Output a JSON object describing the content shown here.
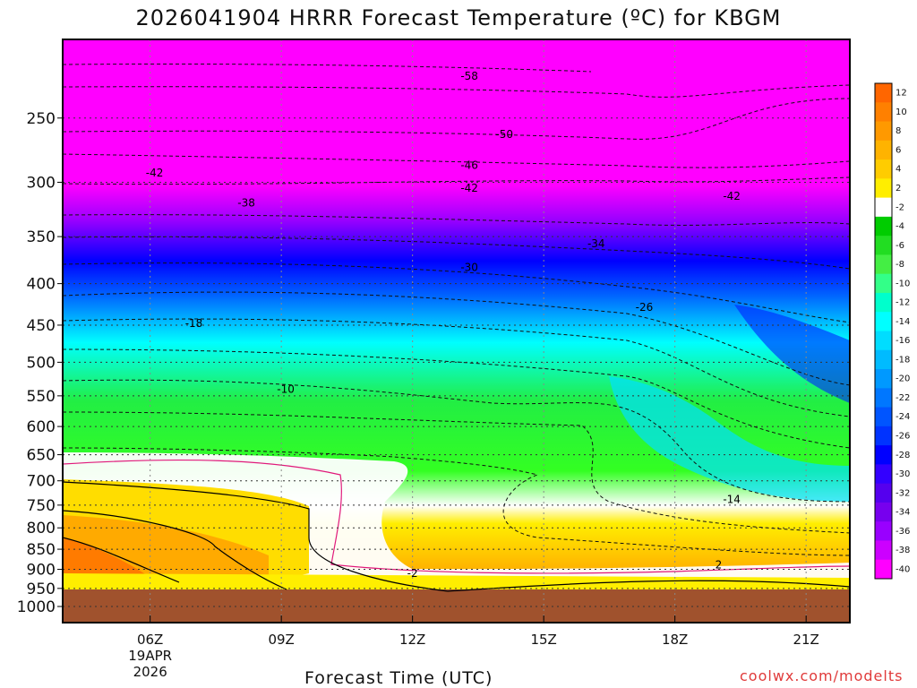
{
  "chart_data": {
    "type": "heatmap",
    "title": "2026041904 HRRR Forecast Temperature (ºC) for KBGM",
    "xlabel": "Forecast Time (UTC)",
    "x_ticks": [
      {
        "hour": 6,
        "label": "06Z",
        "sub": [
          "19APR",
          "2026"
        ]
      },
      {
        "hour": 9,
        "label": "09Z"
      },
      {
        "hour": 12,
        "label": "12Z"
      },
      {
        "hour": 15,
        "label": "15Z"
      },
      {
        "hour": 18,
        "label": "18Z"
      },
      {
        "hour": 21,
        "label": "21Z"
      }
    ],
    "xlim": [
      4,
      22
    ],
    "y_ticks": [
      250,
      300,
      350,
      400,
      450,
      500,
      550,
      600,
      650,
      700,
      750,
      800,
      850,
      900,
      950,
      1000
    ],
    "ylim": [
      1000,
      200
    ],
    "yscale": "log",
    "colorbar_levels": [
      12,
      10,
      8,
      6,
      4,
      2,
      -2,
      -4,
      -6,
      -8,
      -10,
      -12,
      -14,
      -16,
      -18,
      -20,
      -22,
      -24,
      -26,
      -28,
      -30,
      -32,
      -34,
      -36,
      -38,
      -40
    ],
    "colorbar_colors": [
      "#ff6600",
      "#ff8000",
      "#ff9900",
      "#ffb300",
      "#ffcc00",
      "#ffee00",
      "#ffffff",
      "#00cc00",
      "#22dd22",
      "#44ee44",
      "#33ff88",
      "#00ffcc",
      "#00ffff",
      "#00ddff",
      "#00bbff",
      "#0099ff",
      "#0077ff",
      "#0055ff",
      "#0033ff",
      "#0000ff",
      "#3300ff",
      "#5500ee",
      "#7700ee",
      "#9900ff",
      "#cc00ff",
      "#ff00ff"
    ],
    "contour_labels": [
      {
        "text": "-58",
        "x": 13.3,
        "p": 222
      },
      {
        "text": "-50",
        "x": 14.1,
        "p": 262
      },
      {
        "text": "-46",
        "x": 13.3,
        "p": 286
      },
      {
        "text": "-42",
        "x": 6.1,
        "p": 292
      },
      {
        "text": "-42",
        "x": 13.3,
        "p": 305
      },
      {
        "text": "-42",
        "x": 19.3,
        "p": 312
      },
      {
        "text": "-38",
        "x": 8.2,
        "p": 318
      },
      {
        "text": "-34",
        "x": 16.2,
        "p": 357
      },
      {
        "text": "-30",
        "x": 13.3,
        "p": 382
      },
      {
        "text": "-26",
        "x": 17.3,
        "p": 428
      },
      {
        "text": "-18",
        "x": 7.0,
        "p": 448
      },
      {
        "text": "-10",
        "x": 9.1,
        "p": 540
      },
      {
        "text": "-14",
        "x": 19.3,
        "p": 738
      },
      {
        "text": "-2",
        "x": 12.0,
        "p": 910
      },
      {
        "text": "2",
        "x": 19.0,
        "p": 888
      }
    ],
    "surface_color": "#a0522d",
    "surface_p": 955
  },
  "credit": "coolwx.com/modelts"
}
